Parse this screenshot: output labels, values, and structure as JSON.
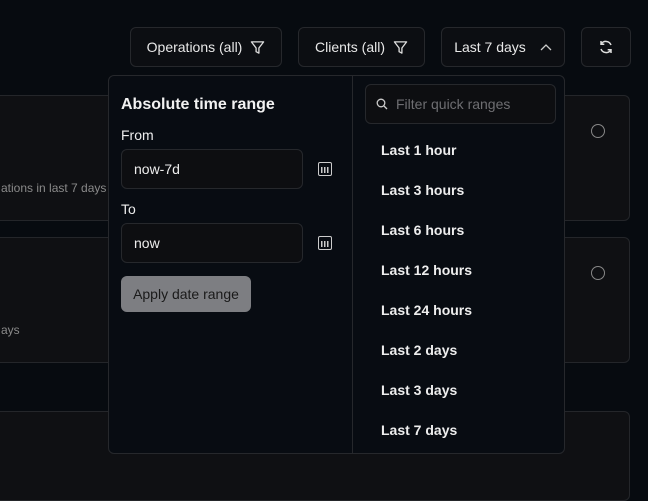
{
  "toolbar": {
    "operations": "Operations (all)",
    "clients": "Clients (all)",
    "range": "Last 7 days"
  },
  "cards": [
    {
      "subtitle": "ations in last 7 days"
    },
    {
      "subtitle": "ays"
    },
    {}
  ],
  "popup": {
    "title": "Absolute time range",
    "from_label": "From",
    "from_value": "now-7d",
    "to_label": "To",
    "to_value": "now",
    "apply": "Apply date range",
    "search_placeholder": "Filter quick ranges",
    "quick_ranges": [
      "Last 1 hour",
      "Last 3 hours",
      "Last 6 hours",
      "Last 12 hours",
      "Last 24 hours",
      "Last 2 days",
      "Last 3 days",
      "Last 7 days"
    ]
  }
}
